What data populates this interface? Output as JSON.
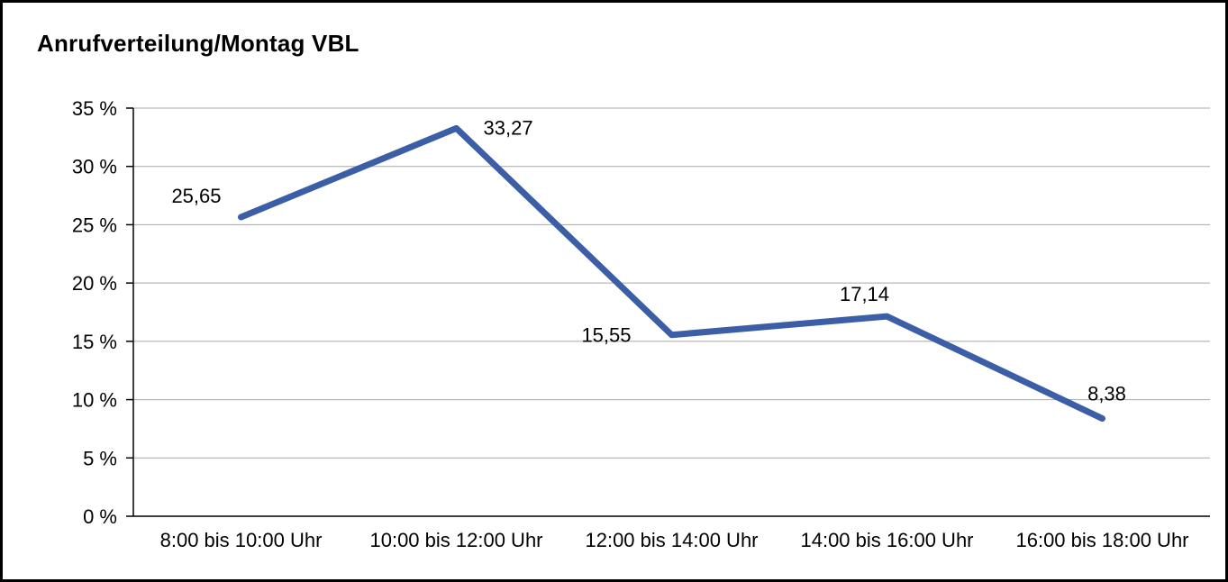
{
  "title": "Anrufverteilung/Montag VBL",
  "colors": {
    "line": "#3C5EA7",
    "grid": "#A8A8A8",
    "axis": "#000000",
    "text": "#000000",
    "background": "#FFFFFF",
    "border": "#000000"
  },
  "chart_data": {
    "type": "line",
    "title": "Anrufverteilung/Montag VBL",
    "categories": [
      "8:00 bis 10:00 Uhr",
      "10:00 bis 12:00 Uhr",
      "12:00 bis 14:00 Uhr",
      "14:00 bis 16:00 Uhr",
      "16:00 bis 18:00 Uhr"
    ],
    "values": [
      25.65,
      33.27,
      15.55,
      17.14,
      8.38
    ],
    "value_labels": [
      "25,65",
      "33,27",
      "15,55",
      "17,14",
      "8,38"
    ],
    "xlabel": "",
    "ylabel": "",
    "ylim": [
      0,
      35
    ],
    "ytick_step": 5,
    "ytick_labels": [
      "0 %",
      "5 %",
      "10 %",
      "15 %",
      "20 %",
      "25 %",
      "30 %",
      "35 %"
    ],
    "grid": true,
    "legend": "none"
  }
}
